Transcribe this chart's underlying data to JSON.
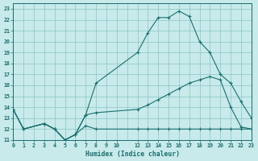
{
  "xlabel": "Humidex (Indice chaleur)",
  "bg_color": "#c8eaea",
  "grid_color": "#89c4c4",
  "line_color": "#1a7070",
  "xlim": [
    0,
    23
  ],
  "ylim": [
    11,
    23.5
  ],
  "ytick_vals": [
    11,
    12,
    13,
    14,
    15,
    16,
    17,
    18,
    19,
    20,
    21,
    22,
    23
  ],
  "xtick_vals": [
    0,
    1,
    2,
    3,
    4,
    5,
    6,
    7,
    8,
    9,
    10,
    12,
    13,
    14,
    15,
    16,
    17,
    18,
    19,
    20,
    21,
    22,
    23
  ],
  "lines": [
    {
      "x": [
        0,
        1,
        3,
        4,
        5,
        6,
        7,
        8,
        12,
        13,
        14,
        15,
        16,
        17,
        18,
        19,
        20,
        21,
        22,
        23
      ],
      "y": [
        13.8,
        12,
        12.5,
        12,
        11,
        11.5,
        13.3,
        16.2,
        19.0,
        20.8,
        22.2,
        22.2,
        22.8,
        22.3,
        20.0,
        19.0,
        17.0,
        16.2,
        14.5,
        13.0
      ]
    },
    {
      "x": [
        0,
        1,
        3,
        4,
        5,
        6,
        7,
        8,
        12,
        13,
        14,
        15,
        16,
        17,
        18,
        19,
        20,
        21,
        22,
        23
      ],
      "y": [
        13.8,
        12,
        12.5,
        12,
        11,
        11.5,
        13.3,
        13.5,
        13.8,
        14.2,
        14.7,
        15.2,
        15.7,
        16.2,
        16.5,
        16.8,
        16.5,
        14.0,
        12.2,
        12.0
      ]
    },
    {
      "x": [
        0,
        1,
        3,
        4,
        5,
        6,
        7,
        8,
        12,
        13,
        14,
        15,
        16,
        17,
        18,
        19,
        20,
        21,
        22,
        23
      ],
      "y": [
        13.8,
        12,
        12.5,
        12,
        11,
        11.5,
        12.3,
        12.0,
        12.0,
        12.0,
        12.0,
        12.0,
        12.0,
        12.0,
        12.0,
        12.0,
        12.0,
        12.0,
        12.0,
        12.0
      ]
    }
  ]
}
